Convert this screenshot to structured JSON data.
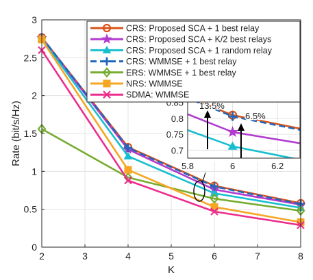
{
  "chart_data": {
    "type": "line",
    "xlabel": "K",
    "ylabel": "Rate (bit/s/Hz)",
    "xlim": [
      2,
      8
    ],
    "ylim": [
      0,
      3
    ],
    "xticks": [
      "2",
      "3",
      "4",
      "5",
      "6",
      "7",
      "8"
    ],
    "yticks": [
      "0",
      "0.5",
      "1",
      "1.5",
      "2",
      "2.5",
      "3"
    ],
    "grid": true,
    "legend_position": "top-right",
    "x": [
      2,
      4,
      6,
      8
    ],
    "series": [
      {
        "name": "CRS: Proposed SCA + 1 best relay",
        "color": "#d95319",
        "marker": "circle",
        "dash": "solid",
        "values": [
          2.77,
          1.32,
          0.81,
          0.58
        ]
      },
      {
        "name": "CRS: Proposed SCA + K/2 best relays",
        "color": "#b23bd0",
        "marker": "star",
        "dash": "solid",
        "values": [
          2.76,
          1.29,
          0.76,
          0.56
        ]
      },
      {
        "name": "CRS: Proposed SCA + 1 random relay",
        "color": "#17becf",
        "marker": "triangle",
        "dash": "solid",
        "values": [
          2.75,
          1.2,
          0.71,
          0.52
        ]
      },
      {
        "name": "CRS: WMMSE + 1 best relay",
        "color": "#2166b8",
        "marker": "plus",
        "dash": "dashed",
        "values": [
          2.77,
          1.31,
          0.8,
          0.57
        ]
      },
      {
        "name": "ERS: WMMSE + 1 best relay",
        "color": "#77ac30",
        "marker": "diamond",
        "dash": "solid",
        "values": [
          1.56,
          0.92,
          0.64,
          0.48
        ]
      },
      {
        "name": "NRS: WMMSE",
        "color": "#f5a623",
        "marker": "square",
        "dash": "solid",
        "values": [
          2.74,
          1.02,
          0.53,
          0.33
        ]
      },
      {
        "name": "SDMA: WMMSE",
        "color": "#ec2d8c",
        "marker": "x",
        "dash": "solid",
        "values": [
          2.6,
          0.88,
          0.47,
          0.29
        ]
      }
    ],
    "inset": {
      "xlim": [
        5.8,
        6.3
      ],
      "ylim": [
        0.675,
        0.86
      ],
      "xticks": [
        "5.8",
        "6",
        "6.2"
      ],
      "yticks": [
        "0.7",
        "0.75",
        "0.8",
        "0.85"
      ],
      "series_values": [
        {
          "ref": 0,
          "values_at_x": [
            [
              5.8,
              0.867
            ],
            [
              6.0,
              0.81
            ],
            [
              6.3,
              0.768
            ]
          ]
        },
        {
          "ref": 1,
          "values_at_x": [
            [
              5.8,
              0.813
            ],
            [
              6.0,
              0.757
            ],
            [
              6.3,
              0.722
            ]
          ]
        },
        {
          "ref": 2,
          "values_at_x": [
            [
              5.8,
              0.763
            ],
            [
              6.0,
              0.712
            ],
            [
              6.3,
              0.67
            ]
          ]
        },
        {
          "ref": 3,
          "values_at_x": [
            [
              5.8,
              0.864
            ],
            [
              6.0,
              0.806
            ],
            [
              6.3,
              0.764
            ]
          ]
        }
      ],
      "annotations": [
        "13.5%",
        "6.5%"
      ]
    }
  }
}
